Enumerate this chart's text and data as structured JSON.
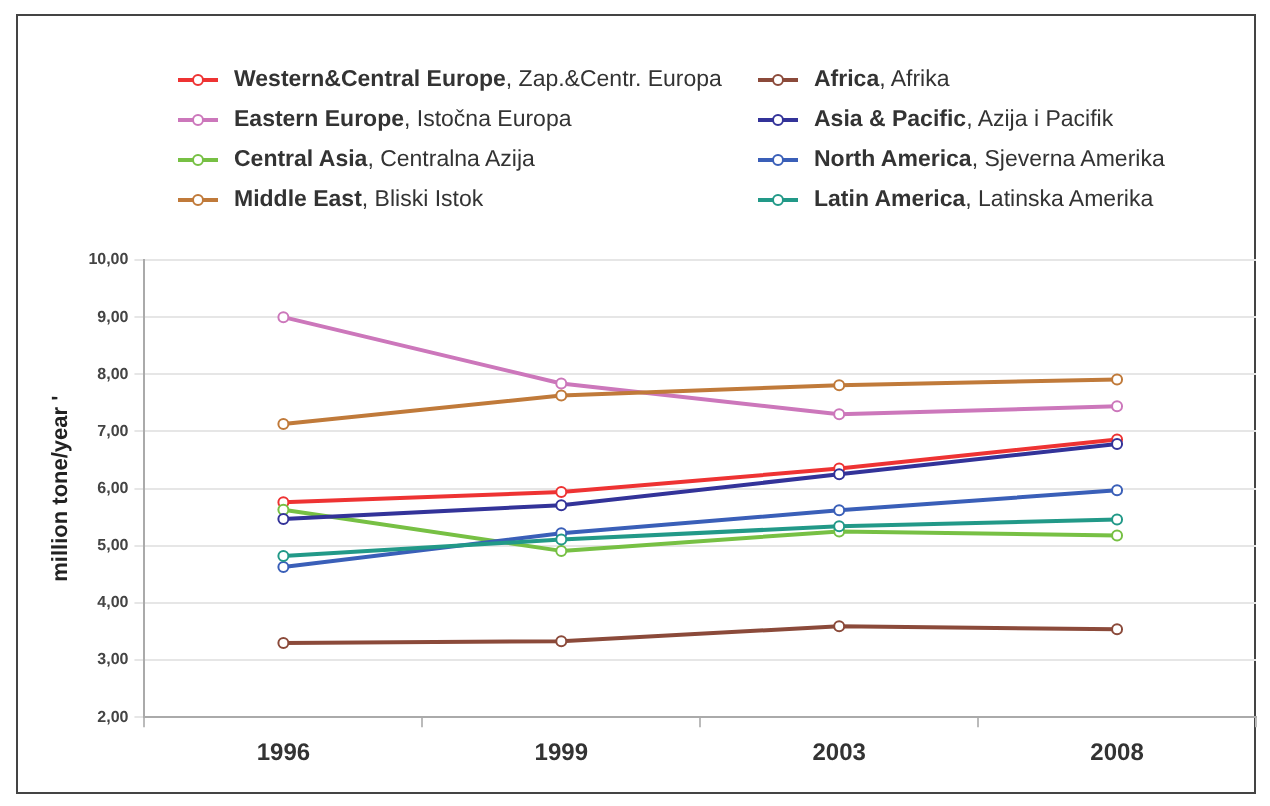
{
  "chart_data": {
    "type": "line",
    "ylabel": "million tone/year '",
    "categories": [
      "1996",
      "1999",
      "2003",
      "2008"
    ],
    "series": [
      {
        "name": "Western&Central Europe, Zap.&Centr. Europa",
        "color": "#ee3333",
        "values": [
          5.76,
          5.94,
          6.35,
          6.86
        ]
      },
      {
        "name": "Eastern Europe, Istočna Europa",
        "color": "#cc77bb",
        "values": [
          9.0,
          7.84,
          7.3,
          7.44
        ]
      },
      {
        "name": "Central Asia, Centralna Azija",
        "color": "#77c044",
        "values": [
          5.63,
          4.91,
          5.25,
          5.18
        ]
      },
      {
        "name": "Middle East, Bliski Istok",
        "color": "#c07a3a",
        "values": [
          7.13,
          7.63,
          7.81,
          7.91
        ]
      },
      {
        "name": "Africa, Afrika",
        "color": "#8b4a3a",
        "values": [
          3.3,
          3.33,
          3.59,
          3.54
        ]
      },
      {
        "name": "Asia & Pacific, Azija i Pacifik",
        "color": "#333399",
        "values": [
          5.47,
          5.71,
          6.25,
          6.78
        ]
      },
      {
        "name": "North America, Sjeverna Amerika",
        "color": "#3a5fb8",
        "values": [
          4.63,
          5.22,
          5.62,
          5.97
        ]
      },
      {
        "name": "Latin America, Latinska Amerika",
        "color": "#229988",
        "values": [
          4.82,
          5.11,
          5.34,
          5.46
        ]
      }
    ],
    "ylim": [
      2,
      10
    ],
    "yticks": [
      {
        "value": 2,
        "label": "2,00"
      },
      {
        "value": 3,
        "label": "3,00"
      },
      {
        "value": 4,
        "label": "4,00"
      },
      {
        "value": 5,
        "label": "5,00"
      },
      {
        "value": 6,
        "label": "6,00"
      },
      {
        "value": 7,
        "label": "7,00"
      },
      {
        "value": 8,
        "label": "8,00"
      },
      {
        "value": 9,
        "label": "9,00"
      },
      {
        "value": 10,
        "label": "10,00"
      }
    ],
    "grid": "y",
    "legend": "top",
    "marker": "circle",
    "line_style": "solid"
  }
}
